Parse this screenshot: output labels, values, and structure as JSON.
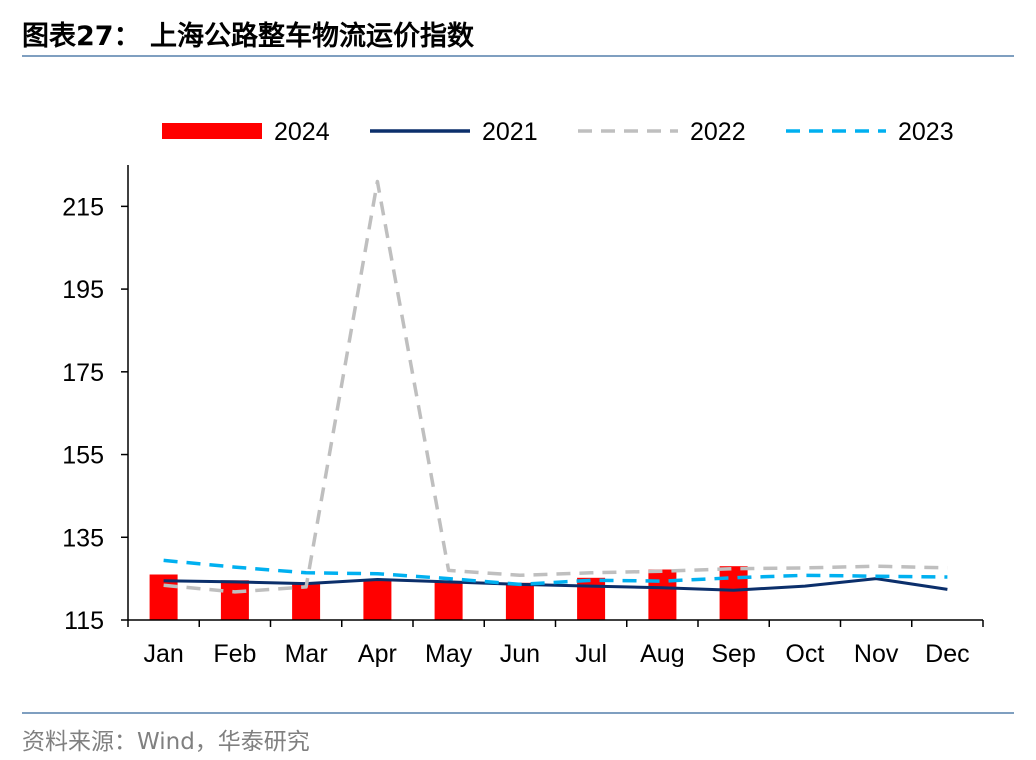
{
  "header": {
    "title": "图表27： 上海公路整车物流运价指数"
  },
  "footer": {
    "source": "资料来源：Wind，华泰研究"
  },
  "chart_data": {
    "type": "bar",
    "categories": [
      "Jan",
      "Feb",
      "Mar",
      "Apr",
      "May",
      "Jun",
      "Jul",
      "Aug",
      "Sep",
      "Oct",
      "Nov",
      "Dec"
    ],
    "ylim": [
      115,
      225
    ],
    "yticks": [
      115,
      135,
      155,
      175,
      195,
      215
    ],
    "legend_position": "top",
    "grid": false,
    "series": [
      {
        "name": "2024",
        "kind": "bar",
        "color": "#ff0000",
        "values": [
          126.0,
          124.6,
          123.8,
          124.6,
          124.4,
          124.0,
          125.2,
          127.2,
          128.0,
          null,
          null,
          null
        ]
      },
      {
        "name": "2021",
        "kind": "line",
        "dash": "solid",
        "color": "#0b2f6b",
        "values": [
          124.5,
          124.2,
          123.8,
          124.8,
          124.2,
          123.6,
          123.2,
          122.8,
          122.2,
          123.2,
          125.0,
          122.4
        ]
      },
      {
        "name": "2022",
        "kind": "line",
        "dash": "dashed",
        "color": "#bfbfbf",
        "values": [
          123.4,
          121.8,
          123.0,
          221.0,
          127.0,
          125.8,
          126.4,
          126.8,
          127.4,
          127.6,
          128.0,
          127.6
        ]
      },
      {
        "name": "2023",
        "kind": "line",
        "dash": "dashed",
        "color": "#00b0f0",
        "values": [
          129.4,
          127.8,
          126.4,
          126.2,
          125.0,
          123.6,
          124.6,
          124.4,
          125.2,
          125.8,
          125.6,
          125.4
        ]
      }
    ]
  }
}
